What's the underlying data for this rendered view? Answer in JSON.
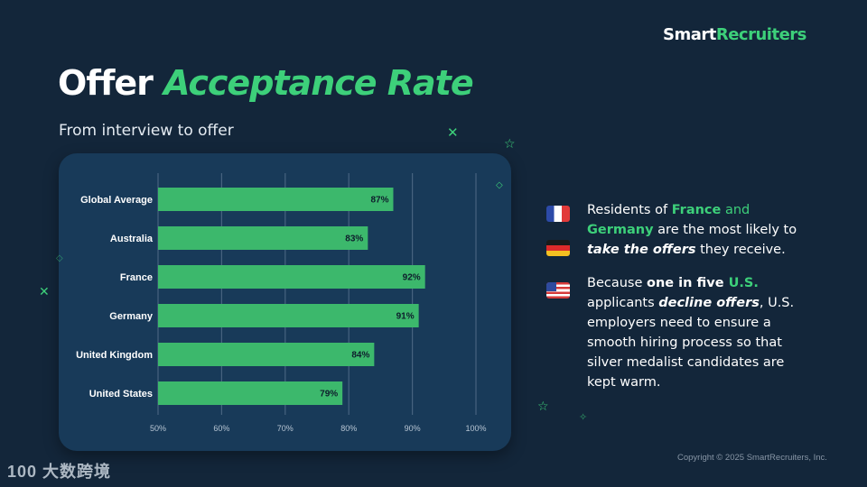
{
  "brand": {
    "part1": "Smart",
    "part2": "Recruiters"
  },
  "title": {
    "part1": "Offer ",
    "part2": "Acceptance Rate"
  },
  "subtitle": "From interview to offer",
  "chart_data": {
    "type": "bar",
    "orientation": "horizontal",
    "categories": [
      "Global Average",
      "Australia",
      "France",
      "Germany",
      "United Kingdom",
      "United States"
    ],
    "values": [
      87,
      83,
      92,
      91,
      84,
      79
    ],
    "value_labels": [
      "87%",
      "83%",
      "92%",
      "91%",
      "84%",
      "79%"
    ],
    "xlim": [
      50,
      100
    ],
    "xticks": [
      50,
      60,
      70,
      80,
      90,
      100
    ],
    "xtick_labels": [
      "50%",
      "60%",
      "70%",
      "80%",
      "90%",
      "100%"
    ],
    "grid": true,
    "bar_color": "#3cb86c"
  },
  "points": [
    {
      "parts": [
        {
          "text": "Residents of ",
          "style": "normal"
        },
        {
          "text": "France",
          "style": "green"
        },
        {
          "text": " and ",
          "style": "normal"
        },
        {
          "text": "Germany",
          "style": "green"
        },
        {
          "text": " are the most likely to ",
          "style": "normal"
        },
        {
          "text": "take the offers",
          "style": "bold-italic"
        },
        {
          "text": " they receive.",
          "style": "normal"
        }
      ]
    },
    {
      "parts": [
        {
          "text": "Because ",
          "style": "normal"
        },
        {
          "text": "one in five ",
          "style": "bold"
        },
        {
          "text": "U.S.",
          "style": "green"
        },
        {
          "text": " applicants ",
          "style": "normal"
        },
        {
          "text": "decline offers",
          "style": "bold-italic"
        },
        {
          "text": ", U.S. employers need to ensure a smooth hiring process so that silver medalist candidates are kept warm.",
          "style": "normal"
        }
      ]
    }
  ],
  "icons": {
    "flag_france": "flag-france-icon",
    "flag_germany": "flag-germany-icon",
    "flag_usa": "flag-usa-icon"
  },
  "copyright": "Copyright © 2025 SmartRecruiters, Inc.",
  "watermark": "100 大数跨境",
  "colors": {
    "accent": "#3dd07a",
    "background": "#13263a",
    "card": "#183a59"
  }
}
